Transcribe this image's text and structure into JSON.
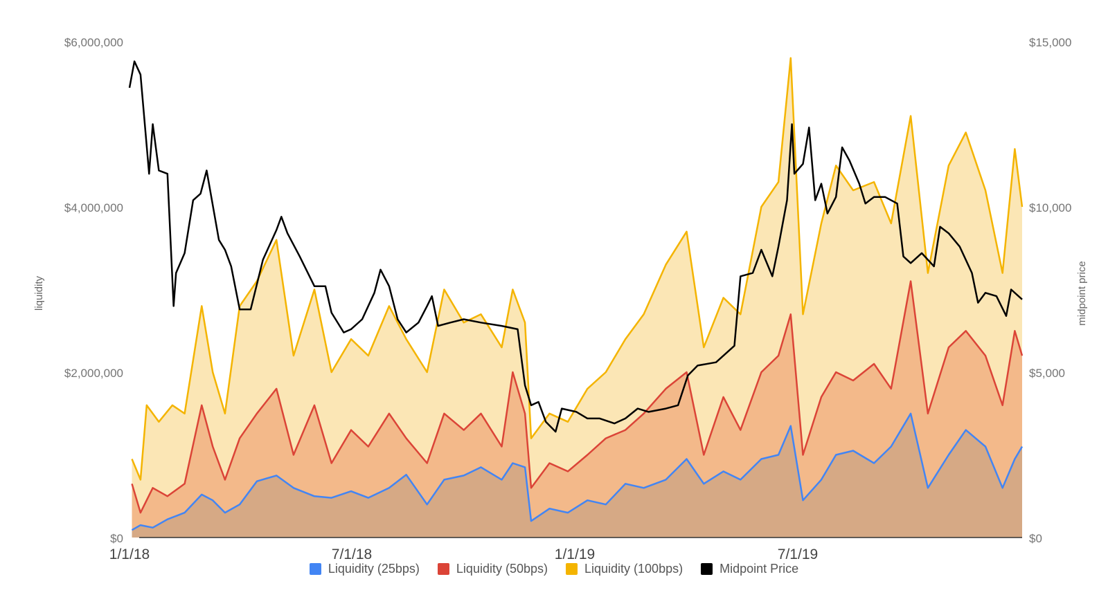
{
  "chart_data": {
    "type": "area",
    "ylabel": "liquidity",
    "y2label": "midpoint price",
    "ylim": [
      0,
      6000000
    ],
    "y2lim": [
      0,
      15000
    ],
    "yticks": [
      "$6,000,000",
      "$4,000,000",
      "$2,000,000",
      "$0"
    ],
    "y2ticks": [
      "$15,000",
      "$10,000",
      "$5,000",
      "$0"
    ],
    "xticks": [
      "1/1/18",
      "7/1/18",
      "1/1/19",
      "7/1/19"
    ],
    "xrange": [
      "2018-01-01",
      "2019-12-31"
    ],
    "legend_position": "bottom",
    "series": [
      {
        "name": "Liquidity (25bps)",
        "axis": "left",
        "color": "#4285f4",
        "fill": "#d6a985",
        "points": [
          [
            "2018-01-03",
            90000
          ],
          [
            "2018-01-10",
            150000
          ],
          [
            "2018-01-20",
            120000
          ],
          [
            "2018-02-01",
            220000
          ],
          [
            "2018-02-15",
            300000
          ],
          [
            "2018-03-01",
            520000
          ],
          [
            "2018-03-10",
            450000
          ],
          [
            "2018-03-20",
            300000
          ],
          [
            "2018-04-01",
            400000
          ],
          [
            "2018-04-15",
            680000
          ],
          [
            "2018-05-01",
            750000
          ],
          [
            "2018-05-15",
            600000
          ],
          [
            "2018-06-01",
            500000
          ],
          [
            "2018-06-15",
            480000
          ],
          [
            "2018-07-01",
            560000
          ],
          [
            "2018-07-15",
            480000
          ],
          [
            "2018-08-01",
            600000
          ],
          [
            "2018-08-15",
            760000
          ],
          [
            "2018-09-01",
            400000
          ],
          [
            "2018-09-15",
            700000
          ],
          [
            "2018-10-01",
            750000
          ],
          [
            "2018-10-15",
            850000
          ],
          [
            "2018-11-01",
            700000
          ],
          [
            "2018-11-10",
            900000
          ],
          [
            "2018-11-20",
            850000
          ],
          [
            "2018-11-25",
            200000
          ],
          [
            "2018-12-10",
            350000
          ],
          [
            "2018-12-25",
            300000
          ],
          [
            "2019-01-10",
            450000
          ],
          [
            "2019-01-25",
            400000
          ],
          [
            "2019-02-10",
            650000
          ],
          [
            "2019-02-25",
            600000
          ],
          [
            "2019-03-15",
            700000
          ],
          [
            "2019-04-01",
            950000
          ],
          [
            "2019-04-15",
            650000
          ],
          [
            "2019-05-01",
            800000
          ],
          [
            "2019-05-15",
            700000
          ],
          [
            "2019-06-01",
            950000
          ],
          [
            "2019-06-15",
            1000000
          ],
          [
            "2019-06-25",
            1350000
          ],
          [
            "2019-07-05",
            450000
          ],
          [
            "2019-07-20",
            700000
          ],
          [
            "2019-08-01",
            1000000
          ],
          [
            "2019-08-15",
            1050000
          ],
          [
            "2019-09-01",
            900000
          ],
          [
            "2019-09-15",
            1100000
          ],
          [
            "2019-10-01",
            1500000
          ],
          [
            "2019-10-15",
            600000
          ],
          [
            "2019-11-01",
            1000000
          ],
          [
            "2019-11-15",
            1300000
          ],
          [
            "2019-12-01",
            1100000
          ],
          [
            "2019-12-15",
            600000
          ],
          [
            "2019-12-25",
            950000
          ],
          [
            "2019-12-31",
            1100000
          ]
        ]
      },
      {
        "name": "Liquidity (50bps)",
        "axis": "left",
        "color": "#db4437",
        "fill": "#f3b98a",
        "points": [
          [
            "2018-01-03",
            650000
          ],
          [
            "2018-01-10",
            300000
          ],
          [
            "2018-01-20",
            600000
          ],
          [
            "2018-02-01",
            500000
          ],
          [
            "2018-02-15",
            650000
          ],
          [
            "2018-03-01",
            1600000
          ],
          [
            "2018-03-10",
            1100000
          ],
          [
            "2018-03-20",
            700000
          ],
          [
            "2018-04-01",
            1200000
          ],
          [
            "2018-04-15",
            1500000
          ],
          [
            "2018-05-01",
            1800000
          ],
          [
            "2018-05-15",
            1000000
          ],
          [
            "2018-06-01",
            1600000
          ],
          [
            "2018-06-15",
            900000
          ],
          [
            "2018-07-01",
            1300000
          ],
          [
            "2018-07-15",
            1100000
          ],
          [
            "2018-08-01",
            1500000
          ],
          [
            "2018-08-15",
            1200000
          ],
          [
            "2018-09-01",
            900000
          ],
          [
            "2018-09-15",
            1500000
          ],
          [
            "2018-10-01",
            1300000
          ],
          [
            "2018-10-15",
            1500000
          ],
          [
            "2018-11-01",
            1100000
          ],
          [
            "2018-11-10",
            2000000
          ],
          [
            "2018-11-20",
            1500000
          ],
          [
            "2018-11-25",
            600000
          ],
          [
            "2018-12-10",
            900000
          ],
          [
            "2018-12-25",
            800000
          ],
          [
            "2019-01-10",
            1000000
          ],
          [
            "2019-01-25",
            1200000
          ],
          [
            "2019-02-10",
            1300000
          ],
          [
            "2019-02-25",
            1500000
          ],
          [
            "2019-03-15",
            1800000
          ],
          [
            "2019-04-01",
            2000000
          ],
          [
            "2019-04-15",
            1000000
          ],
          [
            "2019-05-01",
            1700000
          ],
          [
            "2019-05-15",
            1300000
          ],
          [
            "2019-06-01",
            2000000
          ],
          [
            "2019-06-15",
            2200000
          ],
          [
            "2019-06-25",
            2700000
          ],
          [
            "2019-07-05",
            1000000
          ],
          [
            "2019-07-20",
            1700000
          ],
          [
            "2019-08-01",
            2000000
          ],
          [
            "2019-08-15",
            1900000
          ],
          [
            "2019-09-01",
            2100000
          ],
          [
            "2019-09-15",
            1800000
          ],
          [
            "2019-10-01",
            3100000
          ],
          [
            "2019-10-15",
            1500000
          ],
          [
            "2019-11-01",
            2300000
          ],
          [
            "2019-11-15",
            2500000
          ],
          [
            "2019-12-01",
            2200000
          ],
          [
            "2019-12-15",
            1600000
          ],
          [
            "2019-12-25",
            2500000
          ],
          [
            "2019-12-31",
            2200000
          ]
        ]
      },
      {
        "name": "Liquidity (100bps)",
        "axis": "left",
        "color": "#f4b400",
        "fill": "#fbe6b5",
        "points": [
          [
            "2018-01-03",
            950000
          ],
          [
            "2018-01-10",
            700000
          ],
          [
            "2018-01-15",
            1600000
          ],
          [
            "2018-01-25",
            1400000
          ],
          [
            "2018-02-05",
            1600000
          ],
          [
            "2018-02-15",
            1500000
          ],
          [
            "2018-03-01",
            2800000
          ],
          [
            "2018-03-10",
            2000000
          ],
          [
            "2018-03-20",
            1500000
          ],
          [
            "2018-04-01",
            2800000
          ],
          [
            "2018-04-15",
            3100000
          ],
          [
            "2018-05-01",
            3600000
          ],
          [
            "2018-05-15",
            2200000
          ],
          [
            "2018-06-01",
            3000000
          ],
          [
            "2018-06-15",
            2000000
          ],
          [
            "2018-07-01",
            2400000
          ],
          [
            "2018-07-15",
            2200000
          ],
          [
            "2018-08-01",
            2800000
          ],
          [
            "2018-08-15",
            2400000
          ],
          [
            "2018-09-01",
            2000000
          ],
          [
            "2018-09-15",
            3000000
          ],
          [
            "2018-10-01",
            2600000
          ],
          [
            "2018-10-15",
            2700000
          ],
          [
            "2018-11-01",
            2300000
          ],
          [
            "2018-11-10",
            3000000
          ],
          [
            "2018-11-20",
            2600000
          ],
          [
            "2018-11-25",
            1200000
          ],
          [
            "2018-12-10",
            1500000
          ],
          [
            "2018-12-25",
            1400000
          ],
          [
            "2019-01-10",
            1800000
          ],
          [
            "2019-01-25",
            2000000
          ],
          [
            "2019-02-10",
            2400000
          ],
          [
            "2019-02-25",
            2700000
          ],
          [
            "2019-03-15",
            3300000
          ],
          [
            "2019-04-01",
            3700000
          ],
          [
            "2019-04-15",
            2300000
          ],
          [
            "2019-05-01",
            2900000
          ],
          [
            "2019-05-15",
            2700000
          ],
          [
            "2019-06-01",
            4000000
          ],
          [
            "2019-06-15",
            4300000
          ],
          [
            "2019-06-25",
            5800000
          ],
          [
            "2019-07-05",
            2700000
          ],
          [
            "2019-07-20",
            3800000
          ],
          [
            "2019-08-01",
            4500000
          ],
          [
            "2019-08-15",
            4200000
          ],
          [
            "2019-09-01",
            4300000
          ],
          [
            "2019-09-15",
            3800000
          ],
          [
            "2019-10-01",
            5100000
          ],
          [
            "2019-10-15",
            3200000
          ],
          [
            "2019-11-01",
            4500000
          ],
          [
            "2019-11-15",
            4900000
          ],
          [
            "2019-12-01",
            4200000
          ],
          [
            "2019-12-15",
            3200000
          ],
          [
            "2019-12-25",
            4700000
          ],
          [
            "2019-12-31",
            4000000
          ]
        ]
      },
      {
        "name": "Midpoint Price",
        "axis": "right",
        "color": "#000000",
        "points": [
          [
            "2018-01-01",
            13600
          ],
          [
            "2018-01-05",
            14400
          ],
          [
            "2018-01-10",
            14000
          ],
          [
            "2018-01-17",
            11000
          ],
          [
            "2018-01-20",
            12500
          ],
          [
            "2018-01-25",
            11100
          ],
          [
            "2018-02-01",
            11000
          ],
          [
            "2018-02-06",
            7000
          ],
          [
            "2018-02-08",
            8000
          ],
          [
            "2018-02-15",
            8600
          ],
          [
            "2018-02-22",
            10200
          ],
          [
            "2018-02-28",
            10400
          ],
          [
            "2018-03-05",
            11100
          ],
          [
            "2018-03-15",
            9000
          ],
          [
            "2018-03-20",
            8700
          ],
          [
            "2018-03-25",
            8200
          ],
          [
            "2018-04-01",
            6900
          ],
          [
            "2018-04-10",
            6900
          ],
          [
            "2018-04-20",
            8400
          ],
          [
            "2018-05-01",
            9300
          ],
          [
            "2018-05-05",
            9700
          ],
          [
            "2018-05-10",
            9200
          ],
          [
            "2018-05-20",
            8500
          ],
          [
            "2018-06-01",
            7600
          ],
          [
            "2018-06-10",
            7600
          ],
          [
            "2018-06-15",
            6800
          ],
          [
            "2018-06-25",
            6200
          ],
          [
            "2018-07-01",
            6300
          ],
          [
            "2018-07-10",
            6600
          ],
          [
            "2018-07-20",
            7400
          ],
          [
            "2018-07-25",
            8100
          ],
          [
            "2018-08-01",
            7600
          ],
          [
            "2018-08-08",
            6600
          ],
          [
            "2018-08-15",
            6200
          ],
          [
            "2018-08-25",
            6500
          ],
          [
            "2018-09-01",
            7000
          ],
          [
            "2018-09-05",
            7300
          ],
          [
            "2018-09-10",
            6400
          ],
          [
            "2018-09-20",
            6500
          ],
          [
            "2018-10-01",
            6600
          ],
          [
            "2018-10-15",
            6500
          ],
          [
            "2018-11-01",
            6400
          ],
          [
            "2018-11-14",
            6300
          ],
          [
            "2018-11-20",
            4600
          ],
          [
            "2018-11-25",
            4000
          ],
          [
            "2018-12-01",
            4100
          ],
          [
            "2018-12-07",
            3500
          ],
          [
            "2018-12-15",
            3200
          ],
          [
            "2018-12-20",
            3900
          ],
          [
            "2019-01-01",
            3800
          ],
          [
            "2019-01-10",
            3600
          ],
          [
            "2019-01-20",
            3600
          ],
          [
            "2019-02-01",
            3450
          ],
          [
            "2019-02-10",
            3600
          ],
          [
            "2019-02-20",
            3900
          ],
          [
            "2019-03-01",
            3800
          ],
          [
            "2019-03-15",
            3900
          ],
          [
            "2019-03-25",
            4000
          ],
          [
            "2019-04-02",
            4900
          ],
          [
            "2019-04-10",
            5200
          ],
          [
            "2019-04-25",
            5300
          ],
          [
            "2019-05-10",
            5800
          ],
          [
            "2019-05-15",
            7900
          ],
          [
            "2019-05-25",
            8000
          ],
          [
            "2019-06-01",
            8700
          ],
          [
            "2019-06-10",
            7900
          ],
          [
            "2019-06-15",
            8800
          ],
          [
            "2019-06-22",
            10200
          ],
          [
            "2019-06-26",
            12500
          ],
          [
            "2019-06-28",
            11000
          ],
          [
            "2019-07-05",
            11300
          ],
          [
            "2019-07-10",
            12400
          ],
          [
            "2019-07-15",
            10200
          ],
          [
            "2019-07-20",
            10700
          ],
          [
            "2019-07-25",
            9800
          ],
          [
            "2019-08-01",
            10300
          ],
          [
            "2019-08-06",
            11800
          ],
          [
            "2019-08-12",
            11400
          ],
          [
            "2019-08-20",
            10700
          ],
          [
            "2019-08-25",
            10100
          ],
          [
            "2019-09-01",
            10300
          ],
          [
            "2019-09-10",
            10300
          ],
          [
            "2019-09-20",
            10100
          ],
          [
            "2019-09-25",
            8500
          ],
          [
            "2019-10-01",
            8300
          ],
          [
            "2019-10-10",
            8600
          ],
          [
            "2019-10-20",
            8200
          ],
          [
            "2019-10-25",
            9400
          ],
          [
            "2019-11-01",
            9200
          ],
          [
            "2019-11-10",
            8800
          ],
          [
            "2019-11-20",
            8000
          ],
          [
            "2019-11-25",
            7100
          ],
          [
            "2019-12-01",
            7400
          ],
          [
            "2019-12-10",
            7300
          ],
          [
            "2019-12-18",
            6700
          ],
          [
            "2019-12-22",
            7500
          ],
          [
            "2019-12-31",
            7200
          ]
        ]
      }
    ]
  }
}
